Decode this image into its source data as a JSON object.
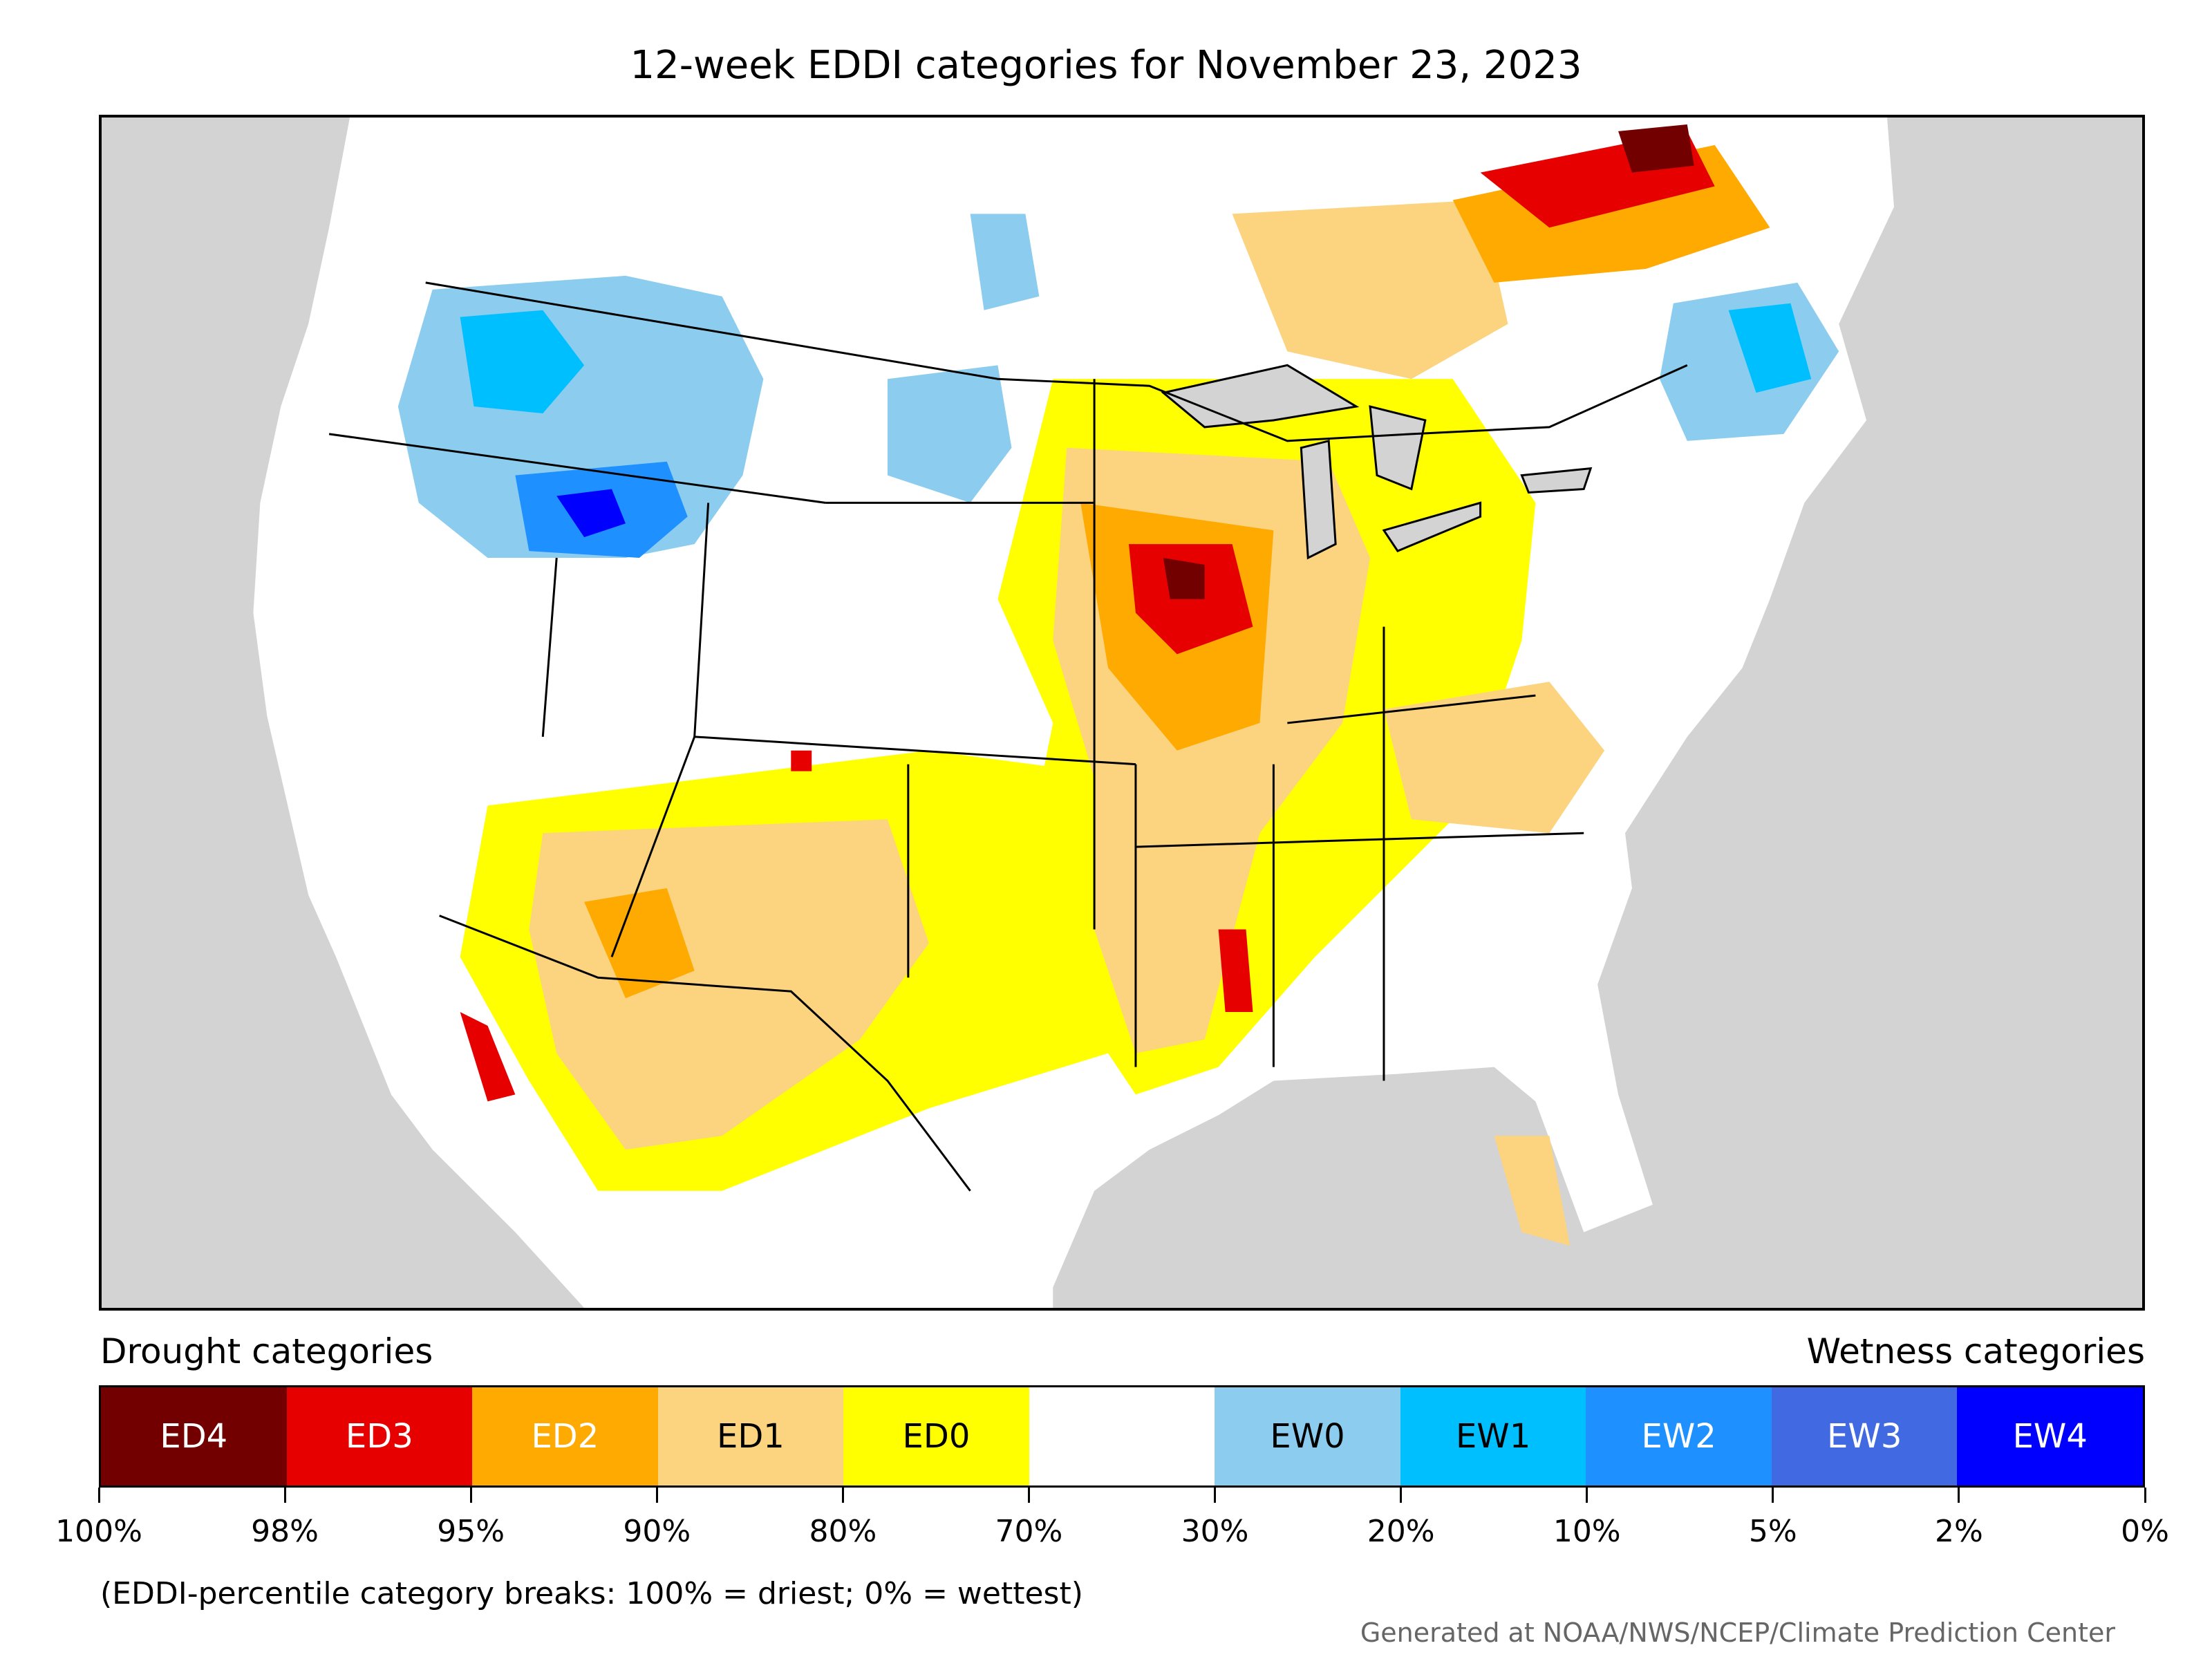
{
  "title": "12-week EDDI categories for November 23, 2023",
  "legend": {
    "drought_heading": "Drought categories",
    "wetness_heading": "Wetness categories",
    "categories": [
      {
        "label": "ED4",
        "color": "#730000",
        "text_color": "#ffffff"
      },
      {
        "label": "ED3",
        "color": "#e60000",
        "text_color": "#ffffff"
      },
      {
        "label": "ED2",
        "color": "#ffaa00",
        "text_color": "#ffffff"
      },
      {
        "label": "ED1",
        "color": "#fcd37f",
        "text_color": "#000000"
      },
      {
        "label": "ED0",
        "color": "#ffff00",
        "text_color": "#000000"
      },
      {
        "label": "",
        "color": "#ffffff",
        "text_color": "#000000"
      },
      {
        "label": "EW0",
        "color": "#8ccdef",
        "text_color": "#000000"
      },
      {
        "label": "EW1",
        "color": "#00bfff",
        "text_color": "#000000"
      },
      {
        "label": "EW2",
        "color": "#1e90ff",
        "text_color": "#ffffff"
      },
      {
        "label": "EW3",
        "color": "#4169e1",
        "text_color": "#ffffff"
      },
      {
        "label": "EW4",
        "color": "#0000ff",
        "text_color": "#ffffff"
      }
    ],
    "tick_labels": [
      "100%",
      "98%",
      "95%",
      "90%",
      "80%",
      "70%",
      "30%",
      "20%",
      "10%",
      "5%",
      "2%",
      "0%"
    ]
  },
  "note": "(EDDI-percentile category breaks: 100% = driest; 0% = wettest)",
  "credit": "Generated at NOAA/NWS/NCEP/Climate Prediction Center",
  "map_colors": {
    "background": "#d3d3d3",
    "land": "#ffffff",
    "border": "#000000"
  }
}
